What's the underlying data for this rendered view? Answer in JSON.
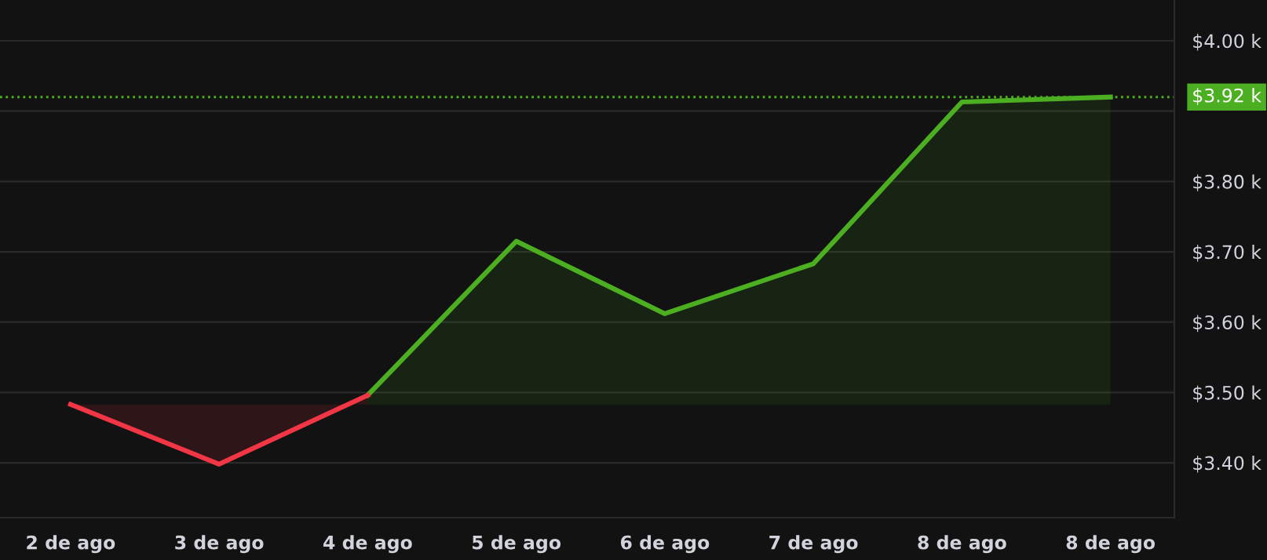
{
  "chart_data": {
    "type": "area",
    "categories": [
      "2 de ago",
      "3 de ago",
      "4 de ago",
      "5 de ago",
      "6 de ago",
      "7 de ago",
      "8 de ago",
      "8 de ago"
    ],
    "series": [
      {
        "color": "#4caf22",
        "values": [
          null,
          null,
          3.496,
          3.715,
          3.612,
          3.683,
          3.913,
          3.92
        ]
      },
      {
        "color": "#f23645",
        "values": [
          3.483,
          3.398,
          3.496,
          null,
          null,
          null,
          null,
          null
        ]
      }
    ],
    "ylim": [
      3.322,
      4.058
    ],
    "yticks": [
      {
        "value": 3.4,
        "label": "$3.40 k"
      },
      {
        "value": 3.5,
        "label": "$3.50 k"
      },
      {
        "value": 3.6,
        "label": "$3.60 k"
      },
      {
        "value": 3.7,
        "label": "$3.70 k"
      },
      {
        "value": 3.8,
        "label": "$3.80 k"
      },
      {
        "value": 3.9,
        "label": null
      },
      {
        "value": 4.0,
        "label": "$4.00 k"
      }
    ],
    "ref_lines": [
      {
        "axis": "y",
        "value": 3.92,
        "label": "$3.92 k",
        "color": "#4caf22",
        "line_style": "dotted"
      }
    ],
    "grid": "y",
    "line_style": "solid",
    "marker": "none"
  }
}
